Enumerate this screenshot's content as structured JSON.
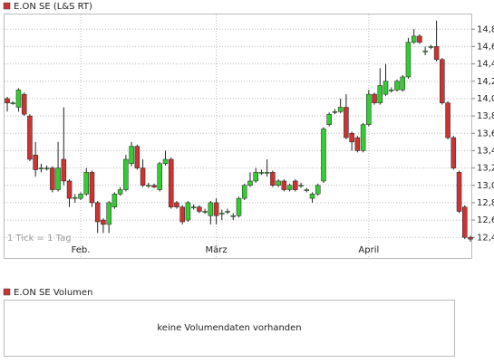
{
  "chart_data": {
    "type": "candlestick",
    "title": "E.ON SE (L&S RT)",
    "note": "1 Tick = 1 Tag",
    "categories": [
      null,
      null,
      null,
      null,
      null,
      null,
      null,
      null,
      null,
      null,
      null,
      null,
      null,
      "Feb.",
      null,
      null,
      null,
      null,
      null,
      null,
      null,
      null,
      null,
      null,
      null,
      null,
      null,
      null,
      null,
      null,
      null,
      null,
      null,
      null,
      null,
      null,
      null,
      "März",
      null,
      null,
      null,
      null,
      null,
      null,
      null,
      null,
      null,
      null,
      null,
      null,
      null,
      null,
      null,
      null,
      null,
      null,
      null,
      null,
      null,
      null,
      null,
      null,
      null,
      null,
      "April",
      null,
      null,
      null,
      null,
      null,
      null,
      null,
      null,
      null,
      null,
      null,
      null,
      null,
      null,
      null,
      null,
      null,
      null
    ],
    "open": [
      14.0,
      13.95,
      13.9,
      14.05,
      13.8,
      13.35,
      13.2,
      13.2,
      13.2,
      12.95,
      13.3,
      13.05,
      12.85,
      12.85,
      12.9,
      13.15,
      12.8,
      12.6,
      12.55,
      12.75,
      12.9,
      12.95,
      13.25,
      13.45,
      13.2,
      13.0,
      13.0,
      12.95,
      13.25,
      13.3,
      12.8,
      12.75,
      12.6,
      12.75,
      12.75,
      12.7,
      12.65,
      12.8,
      12.68,
      12.7,
      12.65,
      12.65,
      12.85,
      13.0,
      13.05,
      13.15,
      13.15,
      13.15,
      13.0,
      13.05,
      12.95,
      13.05,
      13.0,
      12.95,
      12.85,
      12.9,
      13.05,
      13.7,
      13.85,
      13.85,
      13.9,
      13.6,
      13.55,
      13.4,
      13.7,
      14.05,
      13.95,
      14.05,
      14.1,
      14.1,
      14.1,
      14.25,
      14.65,
      14.72,
      14.55,
      14.6,
      14.6,
      14.45,
      13.95,
      13.55,
      13.15,
      12.75,
      12.4
    ],
    "high": [
      14.02,
      13.97,
      14.12,
      14.07,
      13.82,
      13.5,
      13.25,
      13.23,
      13.22,
      13.5,
      13.9,
      13.07,
      12.9,
      12.92,
      13.2,
      13.17,
      12.82,
      12.62,
      12.82,
      12.92,
      12.98,
      13.35,
      13.5,
      13.47,
      13.3,
      13.03,
      13.02,
      13.27,
      13.4,
      13.32,
      12.82,
      12.77,
      12.82,
      12.78,
      12.77,
      12.73,
      12.82,
      12.85,
      12.72,
      12.73,
      12.68,
      12.87,
      13.02,
      13.15,
      13.2,
      13.18,
      13.3,
      13.17,
      13.07,
      13.07,
      13.02,
      13.07,
      13.03,
      12.97,
      12.92,
      13.02,
      13.67,
      13.84,
      13.88,
      14.0,
      14.05,
      13.62,
      13.57,
      13.72,
      14.1,
      14.07,
      14.35,
      14.4,
      14.13,
      14.22,
      14.27,
      14.7,
      14.8,
      14.74,
      14.6,
      14.62,
      14.9,
      14.47,
      13.97,
      13.57,
      13.17,
      12.77,
      12.42
    ],
    "low": [
      13.85,
      13.93,
      13.85,
      13.8,
      13.28,
      13.1,
      13.15,
      13.17,
      12.92,
      12.93,
      13.0,
      12.75,
      12.8,
      12.83,
      12.88,
      12.75,
      12.45,
      12.45,
      12.45,
      12.73,
      12.88,
      12.93,
      13.22,
      13.18,
      12.98,
      12.97,
      12.97,
      12.93,
      13.23,
      12.73,
      12.73,
      12.55,
      12.58,
      12.72,
      12.68,
      12.67,
      12.55,
      12.55,
      12.6,
      12.67,
      12.6,
      12.63,
      12.83,
      12.98,
      13.03,
      13.12,
      13.1,
      12.98,
      12.98,
      12.93,
      12.93,
      12.93,
      12.97,
      12.92,
      12.8,
      12.88,
      13.03,
      13.68,
      13.82,
      13.83,
      13.53,
      13.4,
      13.38,
      13.38,
      13.68,
      13.93,
      13.93,
      14.03,
      14.07,
      14.08,
      14.08,
      14.23,
      14.63,
      14.63,
      14.5,
      14.57,
      14.43,
      13.93,
      13.53,
      13.18,
      12.68,
      12.38,
      12.35
    ],
    "close": [
      13.95,
      13.95,
      14.1,
      13.82,
      13.3,
      13.18,
      13.2,
      13.2,
      12.95,
      13.2,
      13.05,
      12.85,
      12.86,
      12.9,
      13.15,
      12.8,
      12.58,
      12.55,
      12.8,
      12.9,
      12.95,
      13.3,
      13.45,
      13.2,
      13.0,
      13.0,
      12.98,
      13.25,
      13.3,
      12.75,
      12.75,
      12.58,
      12.8,
      12.75,
      12.7,
      12.7,
      12.8,
      12.65,
      12.68,
      12.7,
      12.65,
      12.85,
      13.0,
      13.05,
      13.15,
      13.15,
      13.15,
      13.0,
      13.05,
      12.95,
      13.0,
      12.95,
      13.0,
      12.95,
      12.9,
      13.0,
      13.65,
      13.82,
      13.85,
      13.9,
      13.55,
      13.5,
      13.4,
      13.7,
      14.05,
      13.95,
      14.15,
      14.2,
      14.1,
      14.2,
      14.25,
      14.65,
      14.72,
      14.65,
      14.55,
      14.6,
      14.45,
      13.95,
      13.55,
      13.2,
      12.7,
      12.4,
      12.38
    ],
    "up_color": "#33cc33",
    "down_color": "#cc3333",
    "ylim": [
      12.34,
      14.98
    ],
    "yticks": [
      {
        "value": 12.4,
        "label": "12,4"
      },
      {
        "value": 12.6,
        "label": "12,6"
      },
      {
        "value": 12.8,
        "label": "12,8"
      },
      {
        "value": 13.0,
        "label": "13,0"
      },
      {
        "value": 13.2,
        "label": "13,2"
      },
      {
        "value": 13.4,
        "label": "13,4"
      },
      {
        "value": 13.6,
        "label": "13,6"
      },
      {
        "value": 13.8,
        "label": "13,8"
      },
      {
        "value": 14.0,
        "label": "14,0"
      },
      {
        "value": 14.2,
        "label": "14,2"
      },
      {
        "value": 14.4,
        "label": "14,4"
      },
      {
        "value": 14.6,
        "label": "14,6"
      },
      {
        "value": 14.8,
        "label": "14,8"
      }
    ],
    "grid": true,
    "volume_title": "E.ON SE Volumen",
    "volume_message": "keine Volumendaten vorhanden"
  }
}
